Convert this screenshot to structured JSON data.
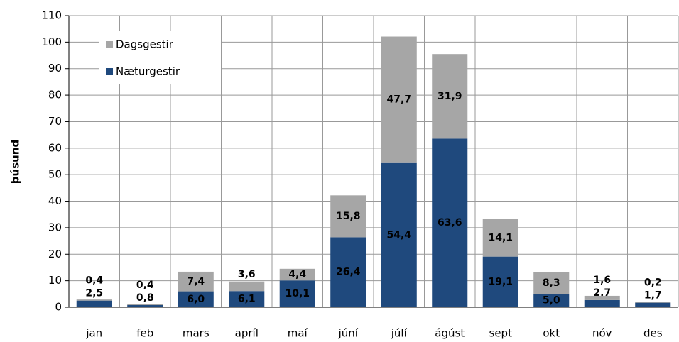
{
  "chart_data": {
    "type": "stacked-bar",
    "y_label": "þúsund",
    "categories": [
      "jan",
      "feb",
      "mars",
      "apríl",
      "maí",
      "júní",
      "júlí",
      "ágúst",
      "sept",
      "okt",
      "nóv",
      "des"
    ],
    "series": [
      {
        "name": "Næturgestir",
        "color": "#1f497d",
        "values": [
          2.5,
          0.8,
          6.0,
          6.1,
          10.1,
          26.4,
          54.4,
          63.6,
          19.1,
          5.0,
          2.7,
          1.7
        ],
        "value_labels": [
          "2,5",
          "0,8",
          "6,0",
          "6,1",
          "10,1",
          "26,4",
          "54,4",
          "63,6",
          "19,1",
          "5,0",
          "2,7",
          "1,7"
        ]
      },
      {
        "name": "Dagsgestir",
        "color": "#a6a6a6",
        "values": [
          0.4,
          0.4,
          7.4,
          3.6,
          4.4,
          15.8,
          47.7,
          31.9,
          14.1,
          8.3,
          1.6,
          0.2
        ],
        "value_labels": [
          "0,4",
          "0,4",
          "7,4",
          "3,6",
          "4,4",
          "15,8",
          "47,7",
          "31,9",
          "14,1",
          "8,3",
          "1,6",
          "0,2"
        ]
      }
    ],
    "ylim": [
      0,
      110
    ],
    "yticks": [
      0,
      10,
      20,
      30,
      40,
      50,
      60,
      70,
      80,
      90,
      100,
      110
    ],
    "grid": true,
    "legend": "upper-left"
  }
}
